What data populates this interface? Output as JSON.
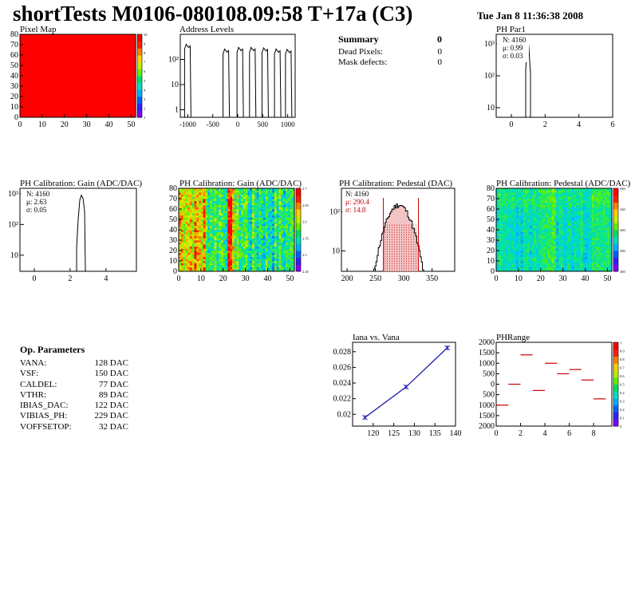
{
  "header": {
    "title": "shortTests M0106-080108.09:58 T+17a (C3)",
    "date": "Tue Jan  8 11:36:38 2008"
  },
  "summary": {
    "title": "Summary",
    "title_value": "0",
    "rows": [
      {
        "label": "Dead Pixels:",
        "value": "0"
      },
      {
        "label": "Mask defects:",
        "value": "0"
      }
    ]
  },
  "params": {
    "title": "Op. Parameters",
    "rows": [
      {
        "label": "VANA:",
        "value": "128 DAC"
      },
      {
        "label": "VSF:",
        "value": "150 DAC"
      },
      {
        "label": "CALDEL:",
        "value": "77 DAC"
      },
      {
        "label": "VTHR:",
        "value": "89 DAC"
      },
      {
        "label": "IBIAS_DAC:",
        "value": "122 DAC"
      },
      {
        "label": "VIBIAS_PH:",
        "value": "229 DAC"
      },
      {
        "label": "VOFFSETOP:",
        "value": "32 DAC"
      }
    ]
  },
  "chart_data": [
    {
      "id": "pixel-map",
      "type": "heatmap",
      "title": "Pixel Map",
      "xlim": [
        0,
        52
      ],
      "ylim": [
        0,
        80
      ],
      "xticks": [
        "0",
        "10",
        "20",
        "30",
        "40",
        "50"
      ],
      "yticks": [
        "0",
        "10",
        "20",
        "30",
        "40",
        "50",
        "60",
        "70",
        "80"
      ],
      "uniform_value": 10,
      "fill_color": "#ff0000",
      "palette_ticks": [
        "10",
        "9",
        "8",
        "7",
        "6",
        "5",
        "4",
        "3",
        "2",
        "1"
      ]
    },
    {
      "id": "address-levels",
      "type": "histogram",
      "title": "Address Levels",
      "log_y": true,
      "xlim": [
        -1150,
        1150
      ],
      "xticks": [
        "-1000",
        "-500",
        "0",
        "500",
        "1000"
      ],
      "yticks": [
        "1",
        "10",
        "10²"
      ],
      "peaks": [
        {
          "x": -1000,
          "count": 400
        },
        {
          "x": -230,
          "count": 260
        },
        {
          "x": 50,
          "count": 300
        },
        {
          "x": 300,
          "count": 300
        },
        {
          "x": 550,
          "count": 290
        },
        {
          "x": 800,
          "count": 260
        },
        {
          "x": 1020,
          "count": 250
        }
      ]
    },
    {
      "id": "ph-par1",
      "type": "histogram",
      "title": "PH Par1",
      "log_y": true,
      "xlim": [
        -0.9,
        6
      ],
      "xticks": [
        "0",
        "2",
        "4",
        "6"
      ],
      "yticks": [
        "10",
        "10²",
        "10³"
      ],
      "stats": [
        "N: 4160",
        "μ: 0.99",
        "σ: 0.03"
      ],
      "mean": 0.99,
      "sigma": 0.03,
      "peak_count": 1500
    },
    {
      "id": "gain-hist",
      "type": "histogram",
      "title": "PH Calibration: Gain (ADC/DAC)",
      "log_y": true,
      "xlim": [
        -0.8,
        5.7
      ],
      "xticks": [
        "0",
        "2",
        "4"
      ],
      "yticks": [
        "10",
        "10²",
        "10³"
      ],
      "stats": [
        "N: 4160",
        "μ: 2.63",
        "σ: 0.05"
      ],
      "mean": 2.63,
      "sigma": 0.05,
      "peak_count": 900
    },
    {
      "id": "gain-map",
      "type": "heatmap",
      "title": "PH Calibration: Gain (ADC/DAC)",
      "xlim": [
        0,
        52
      ],
      "ylim": [
        0,
        80
      ],
      "xticks": [
        "0",
        "10",
        "20",
        "30",
        "40",
        "50"
      ],
      "yticks": [
        "0",
        "10",
        "20",
        "30",
        "40",
        "50",
        "60",
        "70",
        "80"
      ],
      "palette_ticks": [
        "2.7",
        "2.65",
        "2.6",
        "2.55",
        "2.5",
        "2.45"
      ]
    },
    {
      "id": "pedestal-hist",
      "type": "histogram",
      "title": "PH Calibration: Pedestal (DAC)",
      "log_y": true,
      "xlim": [
        190,
        390
      ],
      "xticks": [
        "200",
        "250",
        "300",
        "350"
      ],
      "yticks": [
        "10",
        "10²"
      ],
      "stats": [
        "N: 4160",
        "μ: 290.4",
        "σ: 14.8"
      ],
      "mean": 290.4,
      "sigma": 14.8,
      "peak_count": 150,
      "cut_low": 264,
      "cut_high": 326,
      "stat_color": "#cc0000"
    },
    {
      "id": "pedestal-map",
      "type": "heatmap",
      "title": "PH Calibration: Pedestal (ADC/DAC)",
      "xlim": [
        0,
        52
      ],
      "ylim": [
        0,
        80
      ],
      "xticks": [
        "0",
        "10",
        "20",
        "30",
        "40",
        "50"
      ],
      "yticks": [
        "0",
        "10",
        "20",
        "30",
        "40",
        "50",
        "60",
        "70",
        "80"
      ],
      "palette_ticks": [
        "340",
        "320",
        "300",
        "280",
        "260"
      ]
    },
    {
      "id": "iana-vana",
      "type": "line",
      "title": "Iana vs. Vana",
      "xlim": [
        115,
        140
      ],
      "ylim": [
        0.0185,
        0.0292
      ],
      "xticks": [
        "120",
        "125",
        "130",
        "135",
        "140"
      ],
      "yticks": [
        "0.02",
        "0.022",
        "0.024",
        "0.026",
        "0.028"
      ],
      "x": [
        118,
        128,
        138
      ],
      "y": [
        0.0196,
        0.0235,
        0.0285
      ],
      "color": "#1a1aaa"
    },
    {
      "id": "ph-range",
      "type": "scatter",
      "title": "PHRange",
      "xlim": [
        0,
        9.5
      ],
      "ylim": [
        -2000,
        2000
      ],
      "xticks": [
        "0",
        "2",
        "4",
        "6",
        "8"
      ],
      "yticks": [
        "2000",
        "1500",
        "1000",
        "500",
        "0",
        "500",
        "1000",
        "1500",
        "2000"
      ],
      "x": [
        0.5,
        1.5,
        2.5,
        3.5,
        4.5,
        5.5,
        6.5,
        7.5,
        8.5
      ],
      "y": [
        -1000,
        0,
        1400,
        -300,
        1000,
        500,
        700,
        200,
        -700
      ],
      "color": "#cc0000",
      "palette_ticks": [
        "1",
        "0.9",
        "0.8",
        "0.7",
        "0.6",
        "0.5",
        "0.4",
        "0.3",
        "0.2",
        "0.1",
        "0"
      ]
    }
  ]
}
